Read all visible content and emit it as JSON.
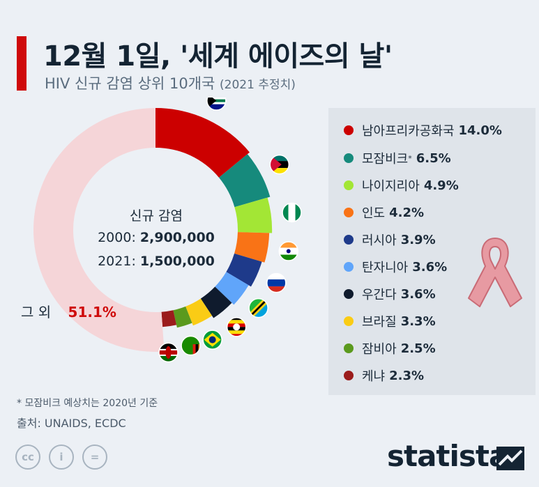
{
  "header": {
    "title": "12월 1일, '세계 에이즈의 날'",
    "subtitle": "HIV 신규 감염 상위 10개국",
    "subtitle_note": "(2021 추정치)"
  },
  "center": {
    "heading": "신규 감염",
    "line1_year": "2000:",
    "line1_value": "2,900,000",
    "line2_year": "2021:",
    "line2_value": "1,500,000"
  },
  "other": {
    "label": "그 외",
    "value": "51.1%"
  },
  "legend": [
    {
      "name": "남아프리카공화국",
      "value": "14.0%",
      "color": "#cc0000"
    },
    {
      "name": "모잠비크",
      "sup": "*",
      "value": "6.5%",
      "color": "#168a7c"
    },
    {
      "name": "나이지리아",
      "value": "4.9%",
      "color": "#a3e635"
    },
    {
      "name": "인도",
      "value": "4.2%",
      "color": "#f97316"
    },
    {
      "name": "러시아",
      "value": "3.9%",
      "color": "#1e3a8a"
    },
    {
      "name": "탄자니아",
      "value": "3.6%",
      "color": "#60a5fa"
    },
    {
      "name": "우간다",
      "value": "3.6%",
      "color": "#0f1b2d"
    },
    {
      "name": "브라질",
      "value": "3.3%",
      "color": "#facc15"
    },
    {
      "name": "잠비아",
      "value": "2.5%",
      "color": "#5b9a1e"
    },
    {
      "name": "케냐",
      "value": "2.3%",
      "color": "#9b1c1c"
    }
  ],
  "chart_data": {
    "type": "pie",
    "categories": [
      "남아프리카공화국",
      "모잠비크",
      "나이지리아",
      "인도",
      "러시아",
      "탄자니아",
      "우간다",
      "브라질",
      "잠비아",
      "케냐",
      "그 외"
    ],
    "values": [
      14.0,
      6.5,
      4.9,
      4.2,
      3.9,
      3.6,
      3.6,
      3.3,
      2.5,
      2.3,
      51.1
    ],
    "colors": [
      "#cc0000",
      "#168a7c",
      "#a3e635",
      "#f97316",
      "#1e3a8a",
      "#60a5fa",
      "#0f1b2d",
      "#facc15",
      "#5b9a1e",
      "#9b1c1c",
      "#f5d5d8"
    ],
    "donut": true,
    "legend_position": "right"
  },
  "flags": [
    "south-africa-flag-icon",
    "mozambique-flag-icon",
    "nigeria-flag-icon",
    "india-flag-icon",
    "russia-flag-icon",
    "tanzania-flag-icon",
    "uganda-flag-icon",
    "brazil-flag-icon",
    "zambia-flag-icon",
    "kenya-flag-icon"
  ],
  "footer": {
    "footnote": "* 모잠비크 예상치는 2020년 기준",
    "source": "출처: UNAIDS, ECDC",
    "brand": "statista",
    "license_icons": [
      "cc-icon",
      "attribution-icon",
      "no-derivatives-icon"
    ],
    "license_glyphs": [
      "cc",
      "i",
      "="
    ]
  }
}
